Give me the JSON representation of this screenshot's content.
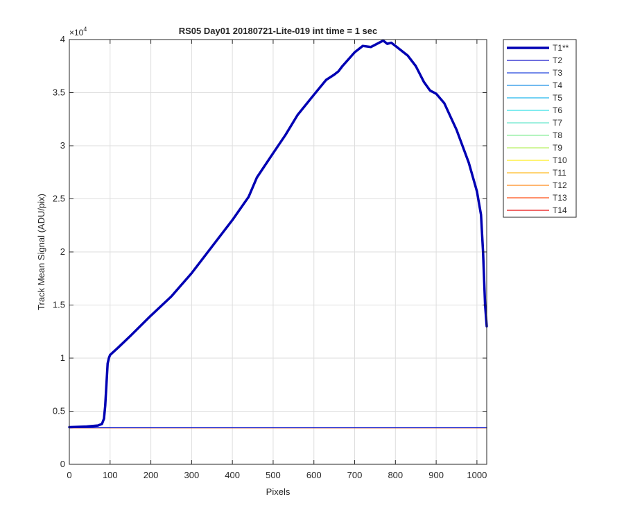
{
  "chart_data": {
    "type": "line",
    "title": "RS05 Day01 20180721-Lite-019 int time = 1 sec",
    "xlabel": "Pixels",
    "ylabel": "Track Mean Signal (ADU/pix)",
    "y_exponent_label": "×10",
    "y_exponent_power": "4",
    "xlim": [
      0,
      1024
    ],
    "ylim": [
      0,
      40000
    ],
    "xticks": [
      0,
      100,
      200,
      300,
      400,
      500,
      600,
      700,
      800,
      900,
      1000
    ],
    "xtick_labels": [
      "0",
      "100",
      "200",
      "300",
      "400",
      "500",
      "600",
      "700",
      "800",
      "900",
      "1000"
    ],
    "yticks": [
      0,
      5000,
      10000,
      15000,
      20000,
      25000,
      30000,
      35000,
      40000
    ],
    "ytick_labels": [
      "0",
      "0.5",
      "1",
      "1.5",
      "2",
      "2.5",
      "3",
      "3.5",
      "4"
    ],
    "grid": true,
    "legend_position": "outside-right",
    "series": [
      {
        "name": "T1**",
        "color": "#0000b3",
        "bold": true,
        "x": [
          0,
          40,
          70,
          80,
          85,
          88,
          91,
          94,
          97,
          100,
          120,
          150,
          200,
          250,
          300,
          350,
          400,
          440,
          460,
          500,
          530,
          560,
          600,
          630,
          650,
          660,
          670,
          700,
          720,
          740,
          760,
          770,
          780,
          790,
          800,
          830,
          850,
          870,
          885,
          900,
          920,
          950,
          980,
          1000,
          1010,
          1015,
          1020,
          1024
        ],
        "y": [
          3500,
          3550,
          3650,
          3800,
          4300,
          5500,
          7500,
          9500,
          10000,
          10300,
          11000,
          12100,
          14000,
          15800,
          18000,
          20500,
          23000,
          25200,
          27000,
          29300,
          31000,
          32900,
          34800,
          36200,
          36700,
          37000,
          37500,
          38800,
          39400,
          39300,
          39700,
          39900,
          39600,
          39700,
          39400,
          38500,
          37500,
          36000,
          35200,
          34900,
          34000,
          31500,
          28400,
          25700,
          23500,
          20000,
          15000,
          13000
        ]
      },
      {
        "name": "T2",
        "color": "#1b1bcc",
        "value": 3460
      },
      {
        "name": "T3",
        "color": "#2244dd",
        "value": 3455
      },
      {
        "name": "T4",
        "color": "#1e90e6",
        "value": 3452
      },
      {
        "name": "T5",
        "color": "#22b8ee",
        "value": 3450
      },
      {
        "name": "T6",
        "color": "#38e0e8",
        "value": 3448
      },
      {
        "name": "T7",
        "color": "#66e8cc",
        "value": 3446
      },
      {
        "name": "T8",
        "color": "#88ee99",
        "value": 3444
      },
      {
        "name": "T9",
        "color": "#b6f060",
        "value": 3442
      },
      {
        "name": "T10",
        "color": "#ffee22",
        "value": 3440
      },
      {
        "name": "T11",
        "color": "#ffbb22",
        "value": 3438
      },
      {
        "name": "T12",
        "color": "#ff8a1a",
        "value": 3436
      },
      {
        "name": "T13",
        "color": "#ff4d14",
        "value": 3434
      },
      {
        "name": "T14",
        "color": "#e60f0f",
        "value": 3432
      }
    ]
  }
}
